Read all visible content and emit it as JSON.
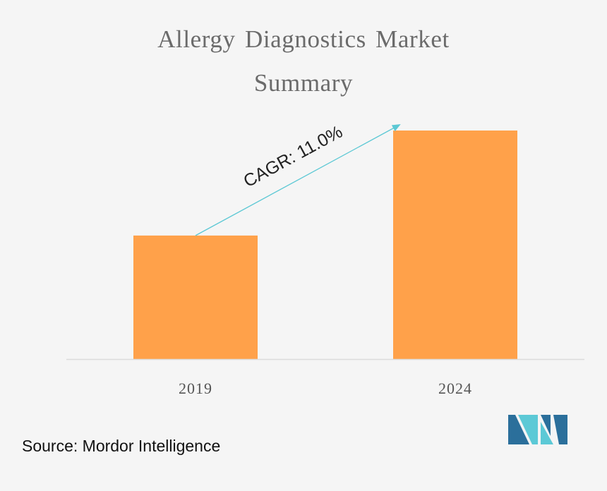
{
  "title": {
    "line1": "Allergy Diagnostics Market",
    "line2": "Summary"
  },
  "source": "Source: Mordor Intelligence",
  "colors": {
    "bar": "#ffa14a",
    "arrow": "#5bc8d4",
    "axis": "#dcdcdc",
    "logo_dark": "#2b6f9b",
    "logo_light": "#5cc9d6"
  },
  "logo": {
    "name": "mordor-intelligence-logo"
  },
  "chart_data": {
    "type": "bar",
    "title": "Allergy Diagnostics Market Summary",
    "categories": [
      "2019",
      "2024"
    ],
    "values": [
      1.0,
      1.85
    ],
    "ylim": [
      0,
      2.05
    ],
    "xlabel": "",
    "ylabel": "",
    "grid": false,
    "legend": "none",
    "annotation": {
      "text": "CAGR: 11.0%",
      "arrow_from": "2019",
      "arrow_to": "2024"
    }
  }
}
